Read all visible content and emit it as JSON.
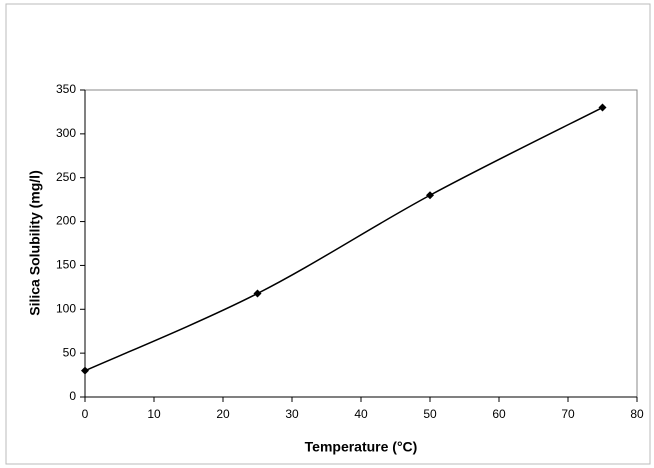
{
  "chart_data": {
    "type": "line",
    "x_label": "Temperature (°C)",
    "y_label": "Silica Solubility (mg/l)",
    "x": [
      0,
      25,
      50,
      75
    ],
    "series": [
      {
        "color": "#000000",
        "values": [
          30,
          118,
          230,
          330
        ]
      }
    ],
    "xlim": [
      0,
      80
    ],
    "xticks": [
      0,
      10,
      20,
      30,
      40,
      50,
      60,
      70,
      80
    ],
    "ylim": [
      0,
      350
    ],
    "yticks": [
      0,
      50,
      100,
      150,
      200,
      250,
      300,
      350
    ],
    "grid": false
  }
}
